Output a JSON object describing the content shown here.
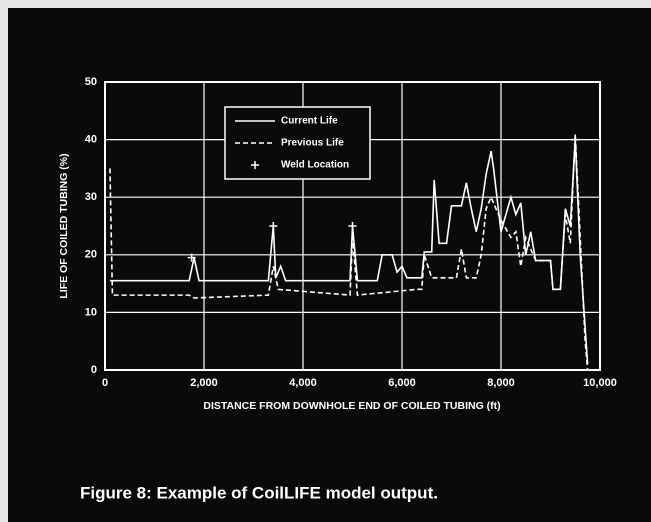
{
  "chart_data": {
    "type": "line",
    "caption": "Figure 8: Example of CoilLIFE model output.",
    "xlabel": "DISTANCE FROM DOWNHOLE END OF COILED TUBING (ft)",
    "ylabel": "LIFE OF COILED TUBING (%)",
    "xlim": [
      0,
      10000
    ],
    "ylim": [
      0,
      50
    ],
    "xticks": [
      0,
      {
        "value": 2000,
        "label": "2,000"
      },
      {
        "value": 4000,
        "label": "4,000"
      },
      {
        "value": 6000,
        "label": "6,000"
      },
      {
        "value": 8000,
        "label": "8,000"
      },
      {
        "value": 10000,
        "label": "10,000"
      }
    ],
    "yticks": [
      0,
      10,
      20,
      30,
      40,
      50
    ],
    "grid": true,
    "legend": "upper center",
    "series": [
      {
        "name": "Current Life",
        "color": "#ffffff",
        "line_style": "solid",
        "x": [
          100,
          1700,
          1800,
          1900,
          3300,
          3400,
          3450,
          3550,
          3650,
          4950,
          5000,
          5100,
          5500,
          5600,
          5800,
          5900,
          6000,
          6100,
          6400,
          6450,
          6600,
          6650,
          6750,
          6900,
          7000,
          7200,
          7300,
          7400,
          7500,
          7600,
          7700,
          7800,
          7850,
          8000,
          8100,
          8200,
          8300,
          8400,
          8500,
          8600,
          8700,
          9000,
          9050,
          9200,
          9300,
          9400,
          9500,
          9600,
          9750
        ],
        "values": [
          15.5,
          15.5,
          19.5,
          15.5,
          15.5,
          25,
          16,
          18,
          15.5,
          15.5,
          25,
          15.5,
          15.5,
          20,
          20,
          17,
          18,
          16,
          16,
          20.5,
          20.5,
          33,
          22,
          22,
          28.5,
          28.5,
          32.5,
          28,
          24,
          28,
          34,
          38,
          35,
          24,
          27,
          30,
          27,
          29,
          20,
          24,
          19,
          19,
          14,
          14,
          28,
          25,
          40,
          20,
          1
        ]
      },
      {
        "name": "Previous Life",
        "color": "#ffffff",
        "line_style": "dashed",
        "x": [
          100,
          150,
          1700,
          1800,
          3300,
          3400,
          3500,
          4950,
          5000,
          5100,
          6300,
          6400,
          6450,
          6600,
          7100,
          7200,
          7300,
          7500,
          7600,
          7700,
          7800,
          8000,
          8200,
          8300,
          8400,
          8500,
          8700,
          9000,
          9050,
          9200,
          9300,
          9400,
          9500,
          9700,
          9750
        ],
        "values": [
          35,
          13,
          13,
          12.5,
          13,
          18,
          14,
          13,
          23,
          13,
          14,
          14,
          20,
          16,
          16,
          21,
          16,
          16,
          20,
          28,
          30,
          26,
          23,
          24,
          18,
          23,
          19,
          19,
          14,
          14,
          27,
          22,
          41,
          5,
          0
        ]
      },
      {
        "name": "Weld Location",
        "color": "#ffffff",
        "line_style": "none",
        "marker": "+",
        "x": [
          1750,
          3400,
          5000,
          9500
        ],
        "values": [
          19.5,
          25,
          25,
          40
        ]
      }
    ]
  }
}
